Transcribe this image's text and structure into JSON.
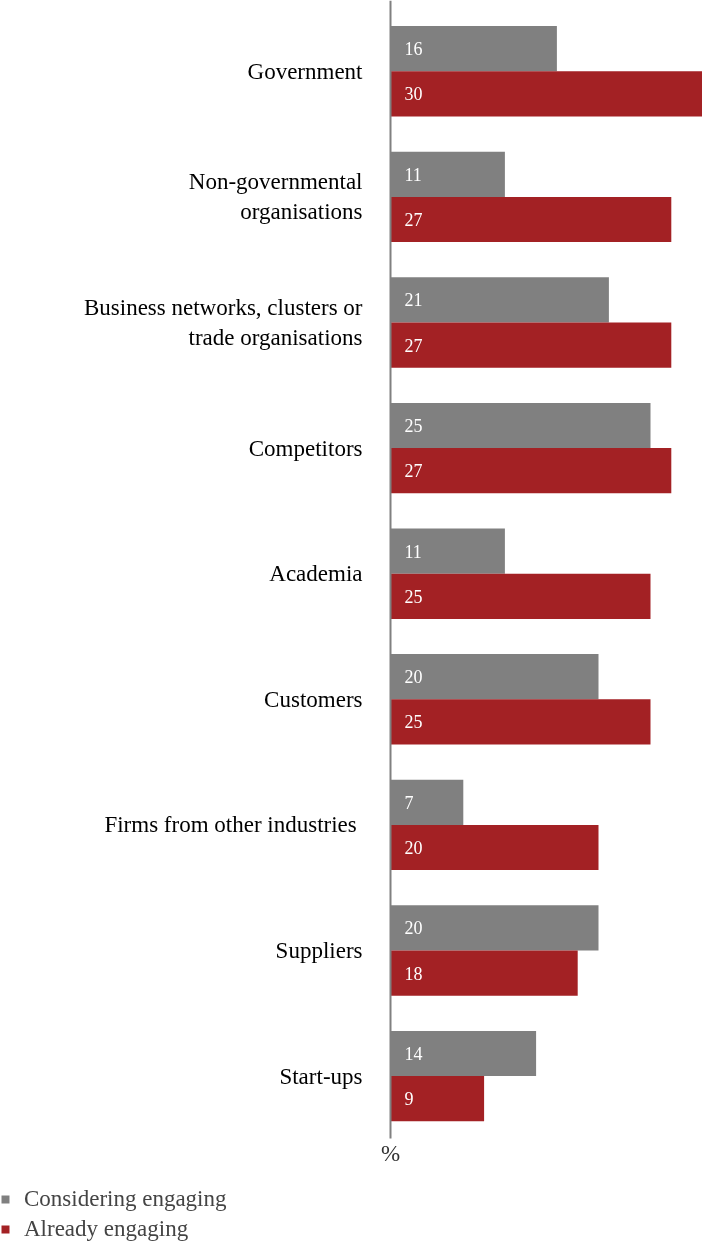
{
  "chart_data": {
    "type": "bar",
    "orientation": "horizontal",
    "categories": [
      "Government",
      "Non-governmental\norganisations",
      "Business networks, clusters or\ntrade organisations",
      "Competitors",
      "Academia",
      "Customers",
      "Firms  from other industries",
      "Suppliers",
      "Start-ups"
    ],
    "series": [
      {
        "name": "Considering engaging",
        "color": "#808080",
        "values": [
          16,
          11,
          21,
          25,
          11,
          20,
          7,
          20,
          14
        ]
      },
      {
        "name": "Already engaging",
        "color": "#a32124",
        "values": [
          30,
          27,
          27,
          27,
          25,
          25,
          20,
          18,
          9
        ]
      }
    ],
    "xlabel": "%",
    "xlim": [
      0,
      30
    ],
    "tick_labels": "y",
    "data_labels": true,
    "legend": "bottom left",
    "grid": false
  }
}
